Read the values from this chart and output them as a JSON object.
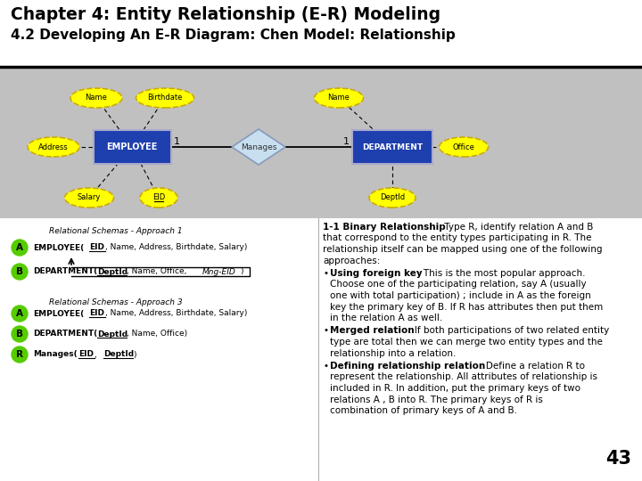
{
  "title_line1": "Chapter 4: Entity Relationship (E-R) Modeling",
  "title_line2": "4.2 Developing An E-R Diagram: Chen Model: Relationship",
  "page_number": "43",
  "entity_color": "#1e3fae",
  "attr_fill": "#ffff00",
  "attr_border": "#ccaa00",
  "diamond_fill": "#c8dff0",
  "diamond_border": "#8899bb",
  "diagram_bg": "#c0c0c0",
  "green_circle": "#55cc00",
  "approach1_label": "Relational Schemas - Approach 1",
  "approach3_label": "Relational Schemas - Approach 3"
}
